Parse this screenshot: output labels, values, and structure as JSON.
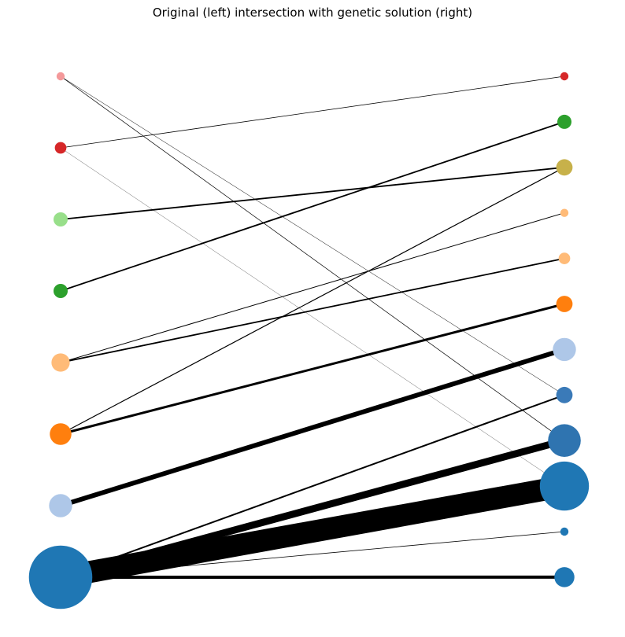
{
  "title": "Original (left) intersection with genetic solution (right)",
  "chart_data": {
    "type": "bipartite-flow",
    "left_nodes": [
      {
        "id": "L0",
        "color": "#f4999a",
        "size": 1
      },
      {
        "id": "L1",
        "color": "#d62728",
        "size": 2
      },
      {
        "id": "L2",
        "color": "#98df8a",
        "size": 3
      },
      {
        "id": "L3",
        "color": "#2ca02c",
        "size": 3
      },
      {
        "id": "L4",
        "color": "#ffbb78",
        "size": 5
      },
      {
        "id": "L5",
        "color": "#ff7f0e",
        "size": 7
      },
      {
        "id": "L6",
        "color": "#aec7e8",
        "size": 8
      },
      {
        "id": "L7",
        "color": "#1f77b4",
        "size": 60
      }
    ],
    "right_nodes": [
      {
        "id": "R0",
        "color": "#d62728",
        "size": 1
      },
      {
        "id": "R1",
        "color": "#2ca02c",
        "size": 3
      },
      {
        "id": "R2",
        "color": "#c7b14a",
        "size": 4
      },
      {
        "id": "R3",
        "color": "#ffbb78",
        "size": 1
      },
      {
        "id": "R4",
        "color": "#ffbb78",
        "size": 2
      },
      {
        "id": "R5",
        "color": "#ff7f0e",
        "size": 4
      },
      {
        "id": "R6",
        "color": "#aec7e8",
        "size": 8
      },
      {
        "id": "R7",
        "color": "#3a7ab8",
        "size": 4
      },
      {
        "id": "R8",
        "color": "#2f74b0",
        "size": 16
      },
      {
        "id": "R9",
        "color": "#1f77b4",
        "size": 36
      },
      {
        "id": "R10",
        "color": "#1f77b4",
        "size": 1
      },
      {
        "id": "R11",
        "color": "#1f77b4",
        "size": 6
      }
    ],
    "edges": [
      {
        "from": 0,
        "to": 7,
        "weight": 0.5
      },
      {
        "from": 0,
        "to": 8,
        "weight": 0.7
      },
      {
        "from": 1,
        "to": 0,
        "weight": 0.8
      },
      {
        "from": 1,
        "to": 9,
        "weight": 0.3
      },
      {
        "from": 2,
        "to": 2,
        "weight": 1.8
      },
      {
        "from": 3,
        "to": 1,
        "weight": 1.8
      },
      {
        "from": 4,
        "to": 3,
        "weight": 1
      },
      {
        "from": 4,
        "to": 4,
        "weight": 1.8
      },
      {
        "from": 5,
        "to": 2,
        "weight": 1.2
      },
      {
        "from": 5,
        "to": 5,
        "weight": 3
      },
      {
        "from": 6,
        "to": 6,
        "weight": 6
      },
      {
        "from": 7,
        "to": 7,
        "weight": 2
      },
      {
        "from": 7,
        "to": 8,
        "weight": 9
      },
      {
        "from": 7,
        "to": 9,
        "weight": 28
      },
      {
        "from": 7,
        "to": 10,
        "weight": 0.8
      },
      {
        "from": 7,
        "to": 11,
        "weight": 4
      }
    ]
  }
}
